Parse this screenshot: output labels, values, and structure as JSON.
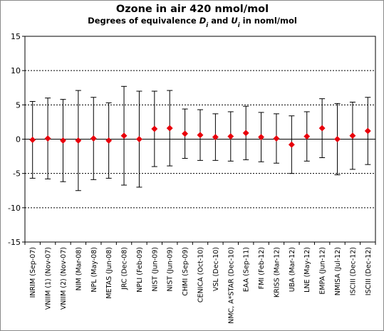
{
  "chart_data": {
    "type": "scatter",
    "title": "Ozone in air   420 nmol/mol",
    "subtitle": {
      "prefix": "Degrees of equivalence ",
      "d_symbol": "D",
      "mid": " and ",
      "u_symbol": "U",
      "sub": "i",
      "suffix": " in noml/mol"
    },
    "xlabel": "",
    "ylabel": "",
    "ylim": [
      -15,
      15
    ],
    "yticks": [
      -15,
      -10,
      -5,
      0,
      5,
      10,
      15
    ],
    "grid": "horizontal dashed at ±5, ±10",
    "marker_color": "#e8000b",
    "categories": [
      "INRIM (Sep-07)",
      "VNIIM (1) (Nov-07)",
      "VNIIM (2) (Nov-07)",
      "NIM (Mar-08)",
      "NPL (May-08)",
      "METAS (Jun-08)",
      "JRC (Dec-08)",
      "NPLI (Feb-09)",
      "NIST (Jun-09)",
      "NIST (Jun-09)",
      "CHMI (Sep-09)",
      "CENICA (Oct-10)",
      "VSL (Dec-10)",
      "NMC, A*STAR (Dec-10)",
      "EAA (Sep-11)",
      "FMI (Feb-12)",
      "KRISS (Mar-12)",
      "UBA (Mar-12)",
      "LNE (May-12)",
      "EMPA (Jun-12)",
      "NMISA (Jul-12)",
      "ISCIII (Dec-12)",
      "ISCIII (Dec-12)"
    ],
    "values": [
      -0.1,
      0.1,
      -0.2,
      -0.2,
      0.1,
      -0.2,
      0.5,
      0.0,
      1.5,
      1.6,
      0.8,
      0.6,
      0.3,
      0.4,
      0.9,
      0.3,
      0.1,
      -0.8,
      0.4,
      1.6,
      0.0,
      0.5,
      1.2
    ],
    "uncertainty": [
      5.6,
      5.9,
      6.0,
      7.3,
      6.0,
      5.5,
      7.2,
      7.0,
      5.5,
      5.5,
      3.6,
      3.7,
      3.4,
      3.6,
      3.9,
      3.6,
      3.6,
      4.2,
      3.6,
      4.3,
      5.2,
      4.9,
      4.9
    ]
  }
}
